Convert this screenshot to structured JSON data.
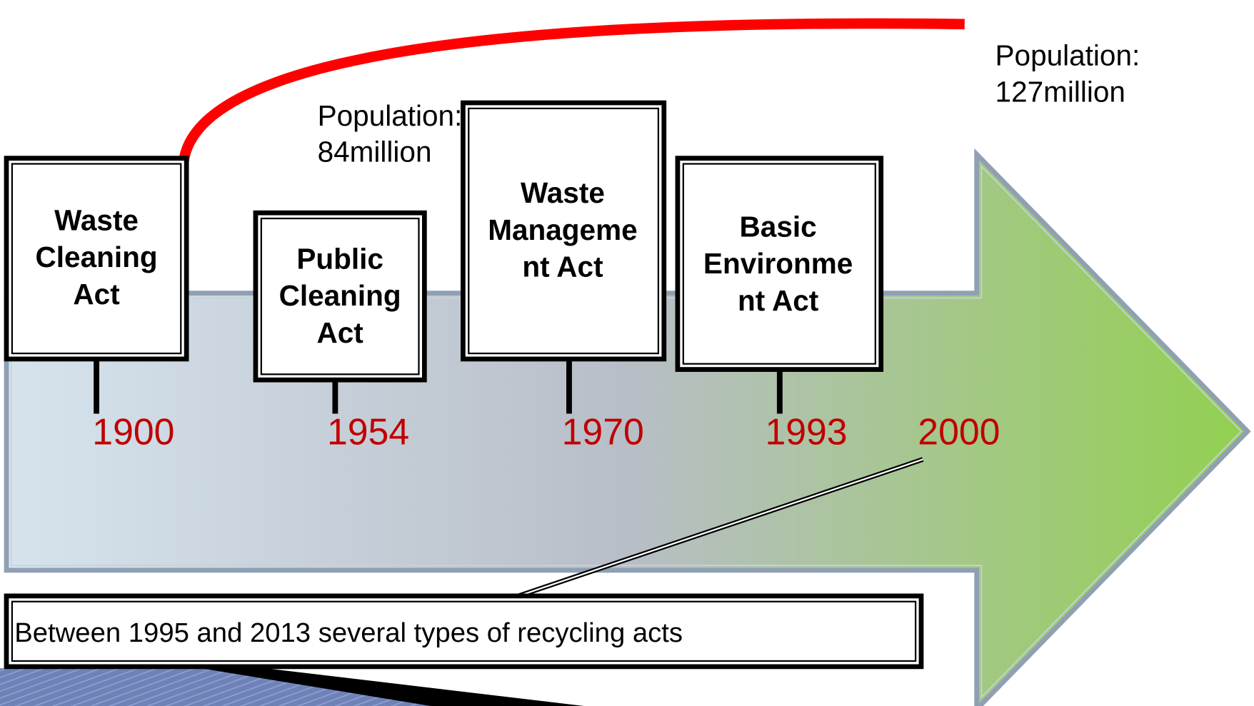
{
  "events": [
    {
      "lines": [
        "Waste",
        "Cleaning",
        "Act"
      ],
      "year": "1900"
    },
    {
      "lines": [
        "Public",
        "Cleaning",
        "Act"
      ],
      "year": "1954"
    },
    {
      "lines": [
        "Waste",
        "Manageme",
        "nt Act"
      ],
      "year": "1970"
    },
    {
      "lines": [
        "Basic",
        "Environme",
        "nt Act"
      ],
      "year": "1993"
    }
  ],
  "extra_year": "2000",
  "population_notes": [
    {
      "lines": [
        "Population:",
        "84million"
      ]
    },
    {
      "lines": [
        "Population:",
        "127million"
      ]
    }
  ],
  "note": "Between 1995 and 2013 several types of recycling acts"
}
